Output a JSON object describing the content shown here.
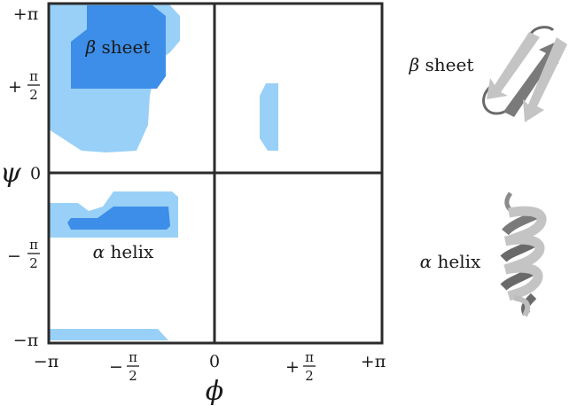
{
  "plot": {
    "x_ticks": [
      {
        "num": "−π",
        "frac": null
      },
      {
        "num": "−",
        "frac": "π/2"
      },
      {
        "num": "0",
        "frac": null
      },
      {
        "num": "+",
        "frac": "π/2"
      },
      {
        "num": "+π",
        "frac": null
      }
    ],
    "y_ticks": [
      {
        "num": "+π",
        "frac": null
      },
      {
        "num": "+",
        "frac": "π/2"
      },
      {
        "num": "0",
        "frac": null
      },
      {
        "num": "−",
        "frac": "π/2"
      },
      {
        "num": "−π",
        "frac": null
      }
    ],
    "x_label": "ϕ",
    "y_label": "ψ",
    "region_labels": {
      "beta": {
        "greek": "β",
        "word": "sheet"
      },
      "alpha": {
        "greek": "α",
        "word": "helix"
      }
    }
  },
  "side_labels": {
    "beta": {
      "greek": "β",
      "word": "sheet"
    },
    "alpha": {
      "greek": "α",
      "word": "helix"
    }
  },
  "colors": {
    "light_region": "#99d0f7",
    "dark_region": "#3d8ee8",
    "axis": "#2b2b2b",
    "structure_light": "#c4c4c4",
    "structure_dark": "#777777"
  }
}
